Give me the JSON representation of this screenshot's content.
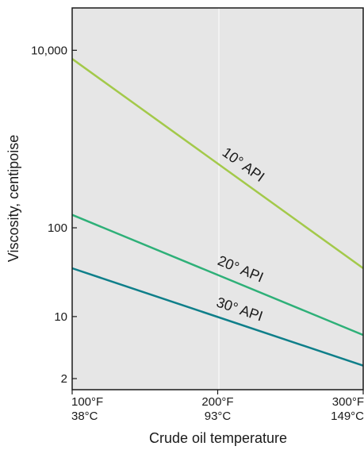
{
  "chart_data": {
    "type": "line",
    "title": "",
    "xlabel": "Crude oil temperature",
    "ylabel": "Viscosity, centipoise",
    "y_scale": "log",
    "ylim": [
      1.5,
      30000
    ],
    "xlim": [
      100,
      300
    ],
    "x_ticks": [
      {
        "value": 100,
        "label_f": "100°F",
        "label_c": "38°C"
      },
      {
        "value": 200,
        "label_f": "200°F",
        "label_c": "93°C"
      },
      {
        "value": 300,
        "label_f": "300°F",
        "label_c": "149°C"
      }
    ],
    "y_ticks": [
      {
        "value": 10000,
        "label": "10,000"
      },
      {
        "value": 100,
        "label": "100"
      },
      {
        "value": 10,
        "label": "10"
      },
      {
        "value": 2,
        "label": "2"
      }
    ],
    "grid": true,
    "background": "#e6e6e6",
    "series": [
      {
        "name": "10° API",
        "color": "#a3c94a",
        "x": [
          100,
          300
        ],
        "y": [
          8000,
          35
        ]
      },
      {
        "name": "20° API",
        "color": "#2eb078",
        "x": [
          100,
          300
        ],
        "y": [
          140,
          6.2
        ]
      },
      {
        "name": "30° API",
        "color": "#0f7f8a",
        "x": [
          100,
          300
        ],
        "y": [
          35,
          2.8
        ]
      }
    ]
  }
}
